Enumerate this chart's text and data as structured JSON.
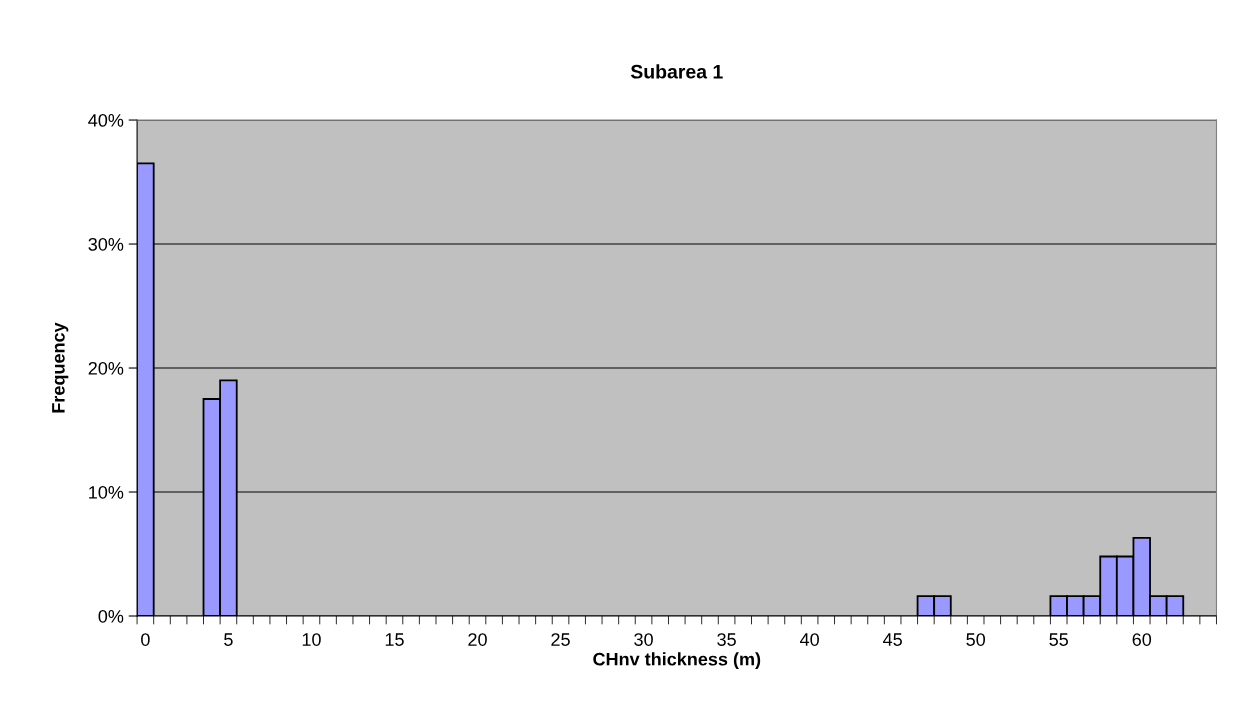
{
  "chart_data": {
    "type": "bar",
    "title": "Subarea 1",
    "xlabel": "CHnv thickness (m)",
    "ylabel": "Frequency",
    "categories": [
      "0",
      null,
      null,
      null,
      null,
      "5",
      null,
      null,
      null,
      null,
      "10",
      null,
      null,
      null,
      null,
      "15",
      null,
      null,
      null,
      null,
      "20",
      null,
      null,
      null,
      null,
      "25",
      null,
      null,
      null,
      null,
      "30",
      null,
      null,
      null,
      null,
      "35",
      null,
      null,
      null,
      null,
      "40",
      null,
      null,
      null,
      null,
      "45",
      null,
      null,
      null,
      null,
      "50",
      null,
      null,
      null,
      null,
      "55",
      null,
      null,
      null,
      null,
      "60",
      null,
      null,
      null,
      null
    ],
    "values": [
      36.5,
      0,
      0,
      0,
      17.5,
      19.0,
      0,
      0,
      0,
      0,
      0,
      0,
      0,
      0,
      0,
      0,
      0,
      0,
      0,
      0,
      0,
      0,
      0,
      0,
      0,
      0,
      0,
      0,
      0,
      0,
      0,
      0,
      0,
      0,
      0,
      0,
      0,
      0,
      0,
      0,
      0,
      0,
      0,
      0,
      0,
      0,
      0,
      1.6,
      1.6,
      0,
      0,
      0,
      0,
      0,
      0,
      1.6,
      1.6,
      1.6,
      4.8,
      4.8,
      6.3,
      1.6,
      1.6,
      0,
      0
    ],
    "color": "#9999ff",
    "ylim": [
      0,
      40
    ],
    "yticks": [
      {
        "value": 0,
        "label": "0%"
      },
      {
        "value": 10,
        "label": "10%"
      },
      {
        "value": 20,
        "label": "20%"
      },
      {
        "value": 30,
        "label": "30%"
      },
      {
        "value": 40,
        "label": "40%"
      }
    ],
    "grid": "y"
  }
}
